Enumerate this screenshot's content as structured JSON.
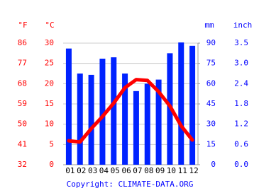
{
  "chart_data": {
    "type": "bar",
    "categories": [
      "01",
      "02",
      "03",
      "04",
      "05",
      "06",
      "07",
      "08",
      "09",
      "10",
      "11",
      "12"
    ],
    "series": [
      {
        "type": "bar",
        "axis": "y2",
        "color": "#0022ff",
        "values": [
          86,
          67.5,
          66.5,
          78.5,
          79.5,
          67.5,
          54.5,
          60,
          63,
          82.5,
          90.5,
          88
        ]
      },
      {
        "type": "line",
        "axis": "y",
        "color": "#ff0000",
        "values": [
          5.9,
          5.6,
          8.9,
          11.9,
          15.2,
          19,
          21,
          20.8,
          18,
          14.5,
          9.6,
          6.1
        ]
      }
    ],
    "ylabel": "°C",
    "ylim": [
      0,
      30
    ],
    "yticks": [
      0,
      5,
      10,
      15,
      20,
      25,
      30
    ],
    "y2label": "mm",
    "y2lim": [
      0,
      90
    ],
    "y2ticks": [
      0,
      15,
      30,
      45,
      60,
      75,
      90
    ],
    "fahrenheit_axis": {
      "label": "°F",
      "ticks": [
        32,
        41,
        50,
        59,
        68,
        77,
        86
      ]
    },
    "inch_axis": {
      "label": "inch",
      "ticks": [
        {
          "value": 0,
          "label": "0.0"
        },
        0.6,
        1.2,
        1.8,
        2.4,
        {
          "value": 3,
          "label": "3.0"
        },
        3.5
      ]
    },
    "grid": true,
    "footer": "Copyright: CLIMATE-DATA.ORG"
  }
}
